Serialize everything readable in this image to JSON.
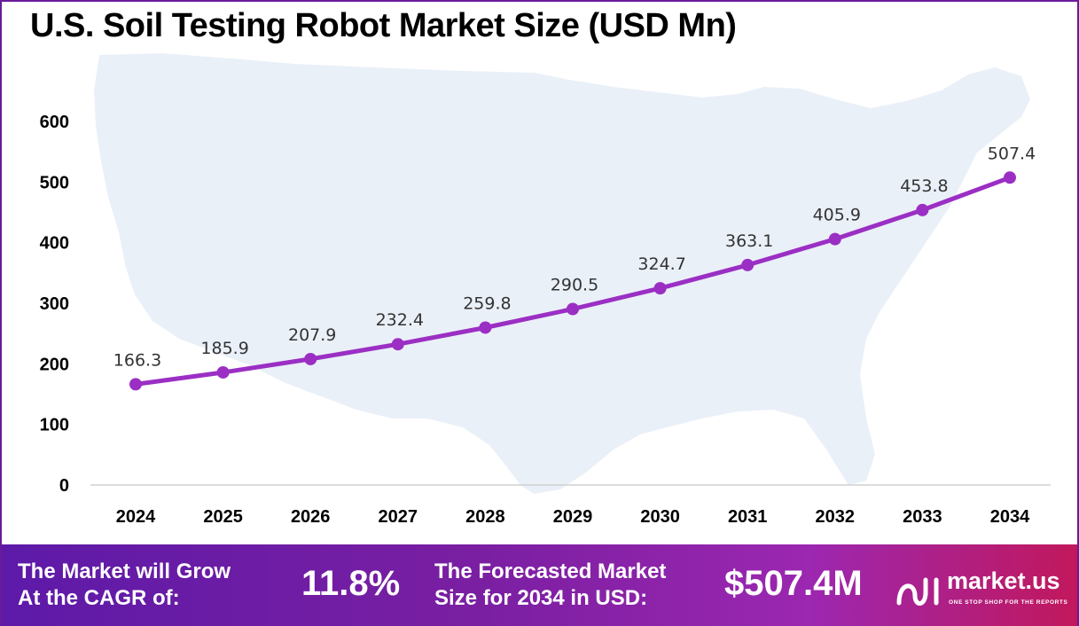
{
  "title": "U.S. Soil Testing Robot Market Size (USD Mn)",
  "chart_data": {
    "type": "line",
    "title": "U.S. Soil Testing Robot Market Size (USD Mn)",
    "categories": [
      "2024",
      "2025",
      "2026",
      "2027",
      "2028",
      "2029",
      "2030",
      "2031",
      "2032",
      "2033",
      "2034"
    ],
    "values": [
      166.3,
      185.9,
      207.9,
      232.4,
      259.8,
      290.5,
      324.7,
      363.1,
      405.9,
      453.8,
      507.4
    ],
    "data_labels": [
      "166.3",
      "185.9",
      "207.9",
      "232.4",
      "259.8",
      "290.5",
      "324.7",
      "363.1",
      "405.9",
      "453.8",
      "507.4"
    ],
    "yticks": [
      "0",
      "100",
      "200",
      "300",
      "400",
      "500",
      "600"
    ],
    "ylim": [
      0,
      600
    ],
    "xlabel": "",
    "ylabel": "",
    "grid": false,
    "line_color": "#9b2fc4",
    "background_map": "us-map-silhouette"
  },
  "footer": {
    "cagr_label_line1": "The Market will Grow",
    "cagr_label_line2": "At the CAGR of:",
    "cagr_value": "11.8%",
    "forecast_label_line1": "The Forecasted Market",
    "forecast_label_line2": "Size for 2034 in USD:",
    "forecast_value": "$507.4M"
  },
  "logo": {
    "name": "market.us",
    "tagline": "ONE STOP SHOP FOR THE REPORTS"
  }
}
